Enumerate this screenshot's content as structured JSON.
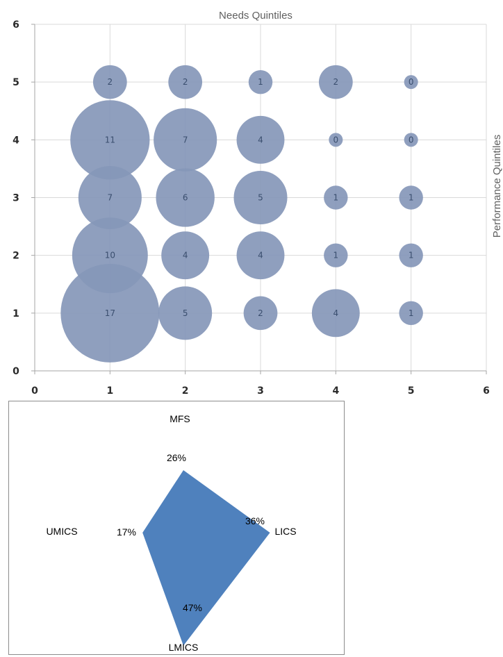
{
  "chart_data": [
    {
      "type": "bubble",
      "title": "Needs Quintiles",
      "ylabel": "Performance Quintiles",
      "xlim": [
        0,
        6
      ],
      "ylim": [
        0,
        6
      ],
      "xticks": [
        0,
        1,
        2,
        3,
        4,
        5,
        6
      ],
      "yticks": [
        0,
        1,
        2,
        3,
        4,
        5,
        6
      ],
      "grid": true,
      "bubble_color": "#8597b8",
      "points": [
        {
          "x": 1,
          "y": 5,
          "value": 2
        },
        {
          "x": 2,
          "y": 5,
          "value": 2
        },
        {
          "x": 3,
          "y": 5,
          "value": 1
        },
        {
          "x": 4,
          "y": 5,
          "value": 2
        },
        {
          "x": 5,
          "y": 5,
          "value": 0
        },
        {
          "x": 1,
          "y": 4,
          "value": 11
        },
        {
          "x": 2,
          "y": 4,
          "value": 7
        },
        {
          "x": 3,
          "y": 4,
          "value": 4
        },
        {
          "x": 4,
          "y": 4,
          "value": 0
        },
        {
          "x": 5,
          "y": 4,
          "value": 0
        },
        {
          "x": 1,
          "y": 3,
          "value": 7
        },
        {
          "x": 2,
          "y": 3,
          "value": 6
        },
        {
          "x": 3,
          "y": 3,
          "value": 5
        },
        {
          "x": 4,
          "y": 3,
          "value": 1
        },
        {
          "x": 5,
          "y": 3,
          "value": 1
        },
        {
          "x": 1,
          "y": 2,
          "value": 10
        },
        {
          "x": 2,
          "y": 2,
          "value": 4
        },
        {
          "x": 3,
          "y": 2,
          "value": 4
        },
        {
          "x": 4,
          "y": 2,
          "value": 1
        },
        {
          "x": 5,
          "y": 2,
          "value": 1
        },
        {
          "x": 1,
          "y": 1,
          "value": 17
        },
        {
          "x": 2,
          "y": 1,
          "value": 5
        },
        {
          "x": 3,
          "y": 1,
          "value": 2
        },
        {
          "x": 4,
          "y": 1,
          "value": 4
        },
        {
          "x": 5,
          "y": 1,
          "value": 1
        }
      ]
    },
    {
      "type": "radar",
      "fill_color": "#4f81bd",
      "axes": [
        {
          "name": "MFS",
          "value": 26,
          "label": "26%"
        },
        {
          "name": "LICS",
          "value": 36,
          "label": "36%"
        },
        {
          "name": "LMICS",
          "value": 47,
          "label": "47%"
        },
        {
          "name": "UMICS",
          "value": 17,
          "label": "17%"
        }
      ]
    }
  ]
}
